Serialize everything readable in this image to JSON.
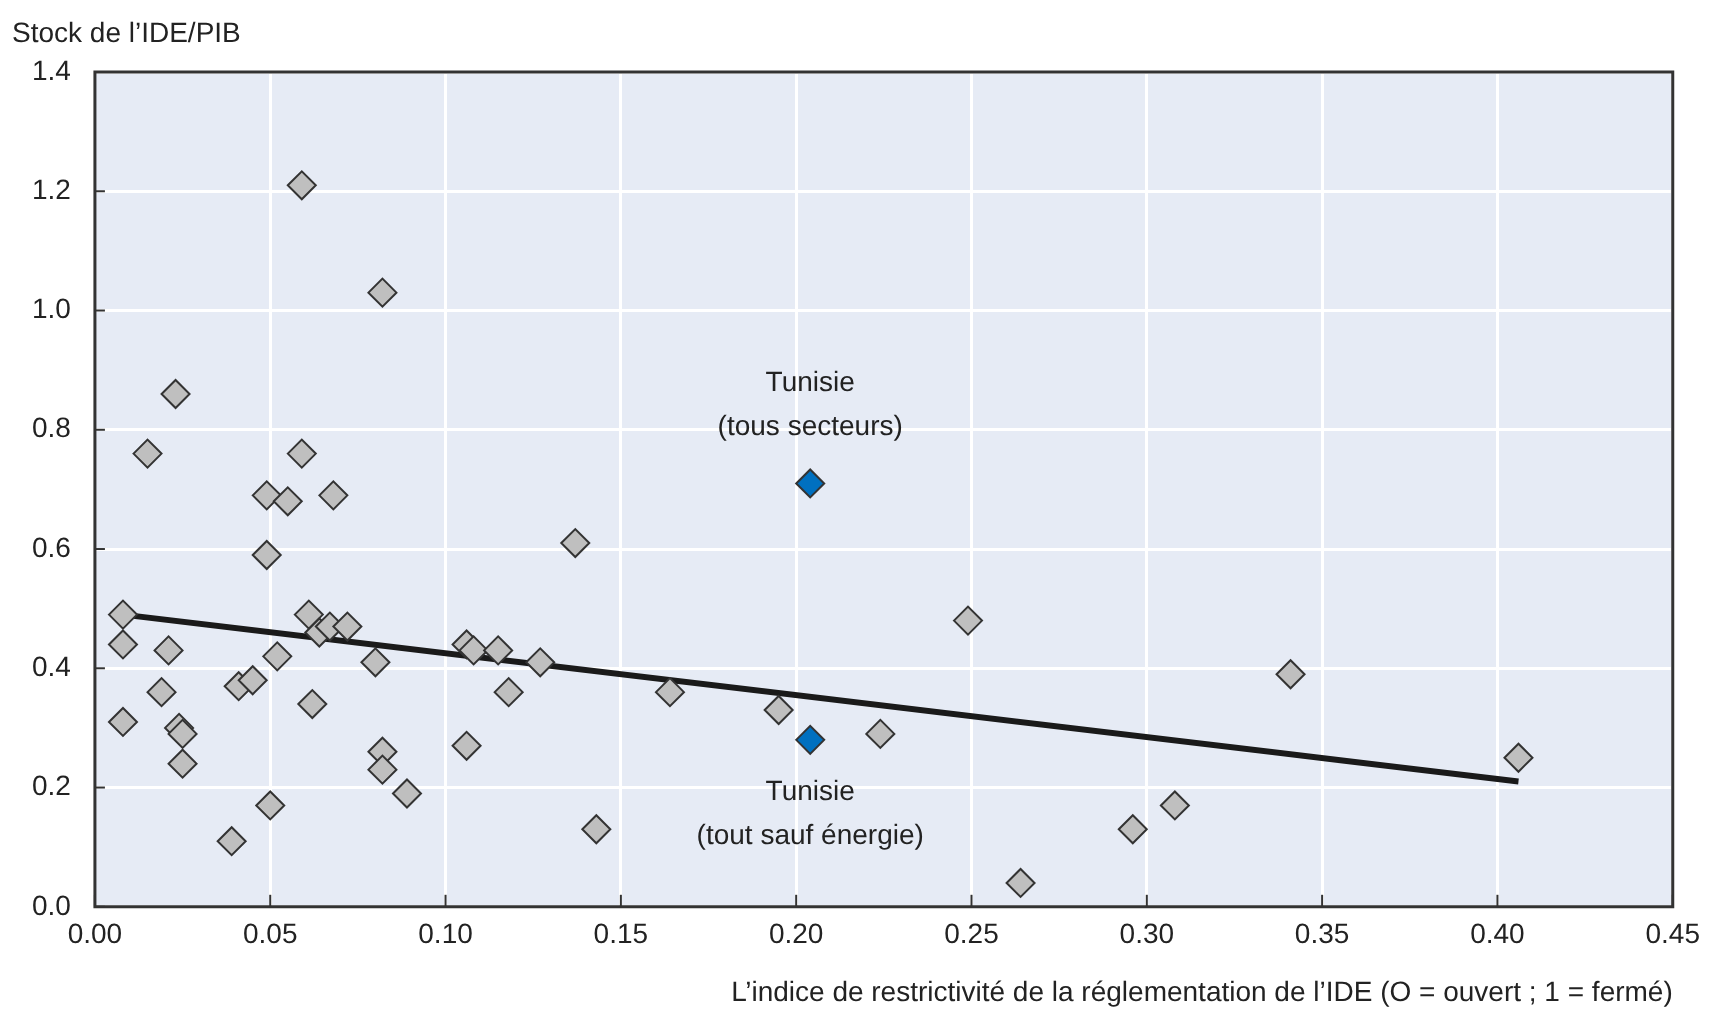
{
  "chart_data": {
    "type": "scatter",
    "xlabel": "L’indice de restrictivité de la réglementation de l’IDE (O = ouvert ; 1 = fermé)",
    "ylabel": "Stock de l’IDE/PIB",
    "xlim": [
      0,
      0.45
    ],
    "xticks": [
      {
        "value": 0,
        "label": "0.00"
      },
      {
        "value": 0.05,
        "label": "0.05"
      },
      {
        "value": 0.1,
        "label": "0.10"
      },
      {
        "value": 0.15,
        "label": "0.15"
      },
      {
        "value": 0.2,
        "label": "0.20"
      },
      {
        "value": 0.25,
        "label": "0.25"
      },
      {
        "value": 0.3,
        "label": "0.30"
      },
      {
        "value": 0.35,
        "label": "0.35"
      },
      {
        "value": 0.4,
        "label": "0.40"
      },
      {
        "value": 0.45,
        "label": "0.45"
      }
    ],
    "ylim": [
      0,
      1.4
    ],
    "yticks": [
      {
        "value": 0,
        "label": "0.0"
      },
      {
        "value": 0.2,
        "label": "0.2"
      },
      {
        "value": 0.4,
        "label": "0.4"
      },
      {
        "value": 0.6,
        "label": "0.6"
      },
      {
        "value": 0.8,
        "label": "0.8"
      },
      {
        "value": 1,
        "label": "1.0"
      },
      {
        "value": 1.2,
        "label": "1.2"
      },
      {
        "value": 1.4,
        "label": "1.4"
      }
    ],
    "grid": true,
    "legend": false,
    "marker": "diamond",
    "series": [
      {
        "color": "#bfbfbf",
        "x": [
          0.008,
          0.008,
          0.008,
          0.015,
          0.023,
          0.021,
          0.019,
          0.024,
          0.025,
          0.025,
          0.039,
          0.041,
          0.045,
          0.05,
          0.049,
          0.049,
          0.055,
          0.052,
          0.059,
          0.059,
          0.061,
          0.064,
          0.067,
          0.062,
          0.068,
          0.072,
          0.08,
          0.082,
          0.082,
          0.082,
          0.089,
          0.106,
          0.106,
          0.108,
          0.115,
          0.118,
          0.127,
          0.137,
          0.143,
          0.164,
          0.195,
          0.224,
          0.249,
          0.264,
          0.296,
          0.308,
          0.341,
          0.406
        ],
        "values": [
          0.49,
          0.44,
          0.31,
          0.76,
          0.86,
          0.43,
          0.36,
          0.3,
          0.29,
          0.24,
          0.11,
          0.37,
          0.38,
          0.17,
          0.59,
          0.69,
          0.68,
          0.42,
          1.21,
          0.76,
          0.49,
          0.46,
          0.47,
          0.34,
          0.69,
          0.47,
          0.41,
          1.03,
          0.26,
          0.23,
          0.19,
          0.27,
          0.44,
          0.43,
          0.43,
          0.36,
          0.41,
          0.61,
          0.13,
          0.36,
          0.33,
          0.29,
          0.48,
          0.04,
          0.13,
          0.17,
          0.39,
          0.25
        ]
      },
      {
        "color": "#0070c0",
        "x": [
          0.204,
          0.204
        ],
        "values": [
          0.71,
          0.28
        ]
      },
      {
        "type": "line",
        "color": "#1a1a1a",
        "x": [
          0.008,
          0.406
        ],
        "values": [
          0.49,
          0.21
        ],
        "marker": "none",
        "line_style": "solid"
      }
    ],
    "annotations": [
      {
        "text": "Tunisie\n(tous secteurs)",
        "x": 0.204,
        "y": 0.71
      },
      {
        "text": "Tunisie\n(tout sauf énergie)",
        "x": 0.204,
        "y": 0.28
      }
    ]
  }
}
